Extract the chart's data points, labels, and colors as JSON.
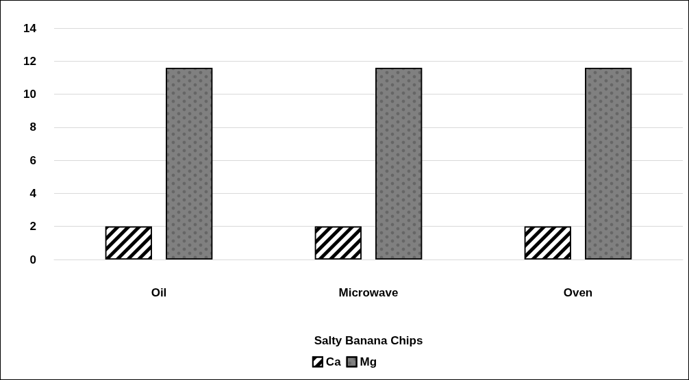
{
  "chart_data": {
    "type": "bar",
    "xlabel": "Salty Banana Chips",
    "categories": [
      "Oil",
      "Microwave",
      "Oven"
    ],
    "series": [
      {
        "name": "Ca",
        "color": "#000000",
        "values": [
          2.0,
          2.0,
          2.0
        ]
      },
      {
        "name": "Mg",
        "color": "#808080",
        "values": [
          11.6,
          11.6,
          11.6
        ]
      }
    ],
    "ylim": [
      0,
      14
    ],
    "yticks": [
      0,
      2,
      4,
      6,
      8,
      10,
      12,
      14
    ],
    "grid": "y",
    "legend": "bottom"
  }
}
